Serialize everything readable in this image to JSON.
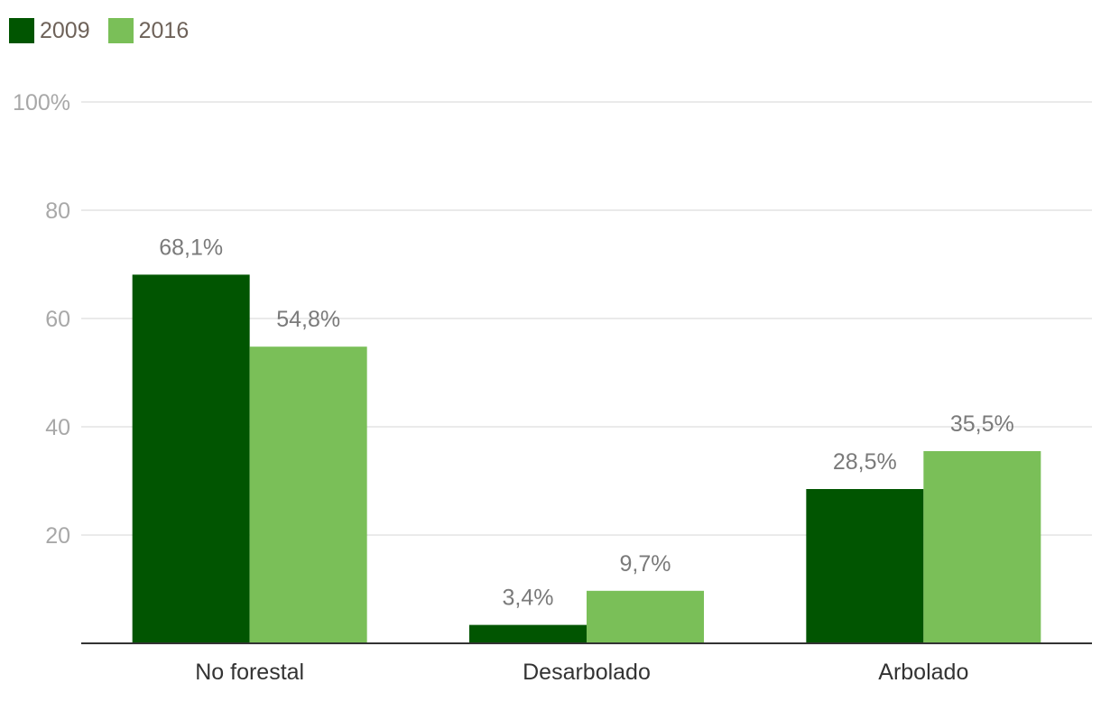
{
  "chart_data": {
    "type": "bar",
    "categories": [
      "No forestal",
      "Desarbolado",
      "Arbolado"
    ],
    "series": [
      {
        "name": "2009",
        "color": "#015501",
        "values": [
          68.1,
          3.4,
          28.5
        ],
        "labels": [
          "68,1%",
          "3,4%",
          "28,5%"
        ]
      },
      {
        "name": "2016",
        "color": "#7abf58",
        "values": [
          54.8,
          9.7,
          35.5
        ],
        "labels": [
          "54,8%",
          "9,7%",
          "35,5%"
        ]
      }
    ],
    "y_ticks": [
      {
        "value": 20,
        "label": "20"
      },
      {
        "value": 40,
        "label": "40"
      },
      {
        "value": 60,
        "label": "60"
      },
      {
        "value": 80,
        "label": "80"
      },
      {
        "value": 100,
        "label": "100%"
      }
    ],
    "ylim": [
      0,
      100
    ],
    "grid": true,
    "legend_position": "top-left",
    "colors": {
      "grid": "#e3e3e3",
      "axis": "#333333"
    }
  }
}
